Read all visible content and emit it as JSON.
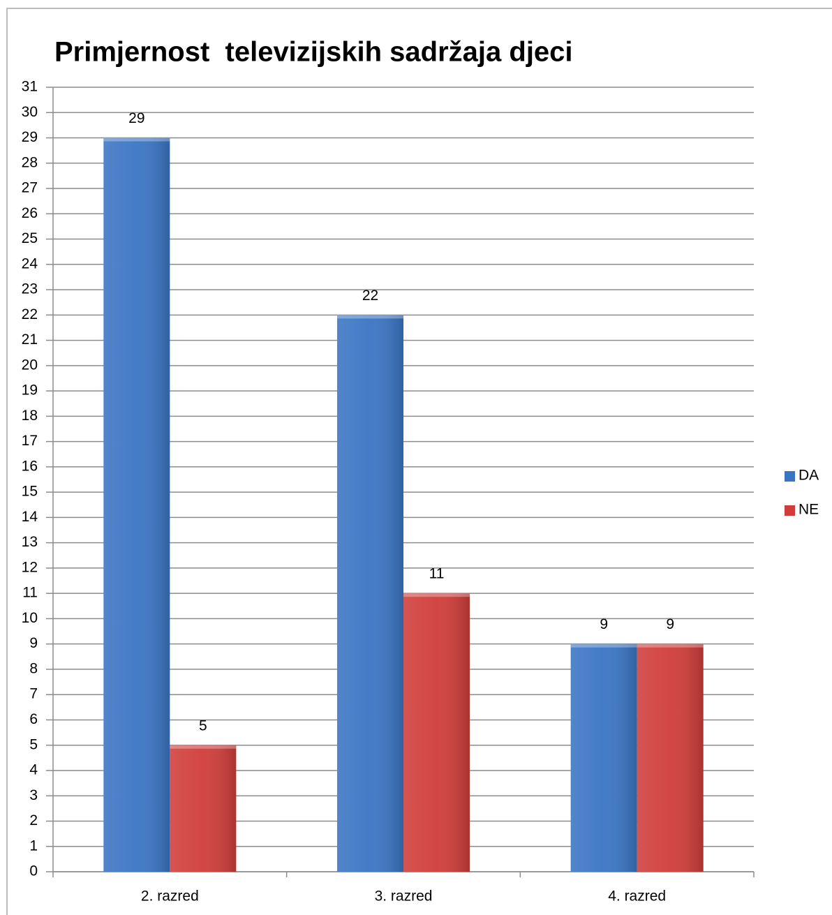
{
  "chart_data": {
    "type": "bar",
    "title": "Primjernost  televizijskih sadržaja djeci",
    "categories": [
      "2. razred",
      "3. razred",
      "4. razred"
    ],
    "series": [
      {
        "name": "DA",
        "color": "#3a75c4",
        "values": [
          29,
          22,
          9
        ]
      },
      {
        "name": "NE",
        "color": "#d03d3a",
        "values": [
          5,
          11,
          9
        ]
      }
    ],
    "ylim": [
      0,
      31
    ],
    "yticks": [
      0,
      1,
      2,
      3,
      4,
      5,
      6,
      7,
      8,
      9,
      10,
      11,
      12,
      13,
      14,
      15,
      16,
      17,
      18,
      19,
      20,
      21,
      22,
      23,
      24,
      25,
      26,
      27,
      28,
      29,
      30,
      31
    ],
    "grid": true,
    "legend": "right"
  }
}
